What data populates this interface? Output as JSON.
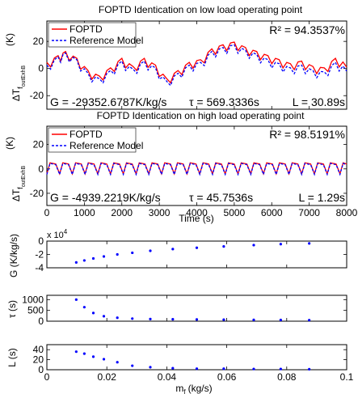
{
  "chart_data": [
    {
      "type": "line",
      "title": "FOPTD Identication on low load operating point",
      "ylabel": "ΔT",
      "ylabel_subscript": "f",
      "ylabel_subsubscript": "out",
      "ylabel_subsubscript2": "ExhB",
      "yunit": "(K)",
      "xlim": [
        0,
        8000
      ],
      "ylim": [
        -30,
        35
      ],
      "yticks": [
        "-20",
        "0",
        "20"
      ],
      "ytick_values": [
        -20,
        0,
        20
      ],
      "legend": {
        "placement": "top-left",
        "entries": [
          "FOPTD",
          "Reference Model"
        ]
      },
      "annotations": {
        "r2": "R² = 94.3537%",
        "gain": "G = -29352.6787K/kg/s",
        "tau": "τ = 569.3336s",
        "delay": "L = 30.89s"
      },
      "series": [
        {
          "name": "FOPTD",
          "color": "#ff0000",
          "style": "solid",
          "x": [
            0,
            300,
            500,
            800,
            1100,
            1400,
            1700,
            2000,
            2300,
            2600,
            2900,
            3200,
            3500,
            3800,
            4100,
            4400,
            4700,
            5000,
            5300,
            5600,
            5900,
            6200,
            6500,
            6800,
            7100,
            7400,
            7700,
            8000
          ],
          "y": [
            2,
            7,
            10,
            5,
            -4,
            -8,
            -2,
            5,
            -1,
            5,
            0,
            -10,
            -4,
            2,
            4,
            12,
            15,
            17,
            13,
            10,
            7,
            4,
            1,
            3,
            -1,
            -2,
            5,
            1
          ]
        },
        {
          "name": "Reference Model",
          "color": "#0000ff",
          "style": "dashed",
          "x": [
            0,
            300,
            500,
            800,
            1100,
            1400,
            1700,
            2000,
            2300,
            2600,
            2900,
            3200,
            3500,
            3800,
            4100,
            4400,
            4700,
            5000,
            5300,
            5600,
            5900,
            6200,
            6500,
            6800,
            7100,
            7400,
            7700,
            8000
          ],
          "y": [
            0,
            6,
            9,
            4,
            -6,
            -10,
            -4,
            3,
            -3,
            3,
            -2,
            -12,
            -6,
            0,
            2,
            10,
            13,
            15,
            11,
            8,
            4,
            1,
            -2,
            0,
            -4,
            -5,
            2,
            -2
          ]
        }
      ]
    },
    {
      "type": "line",
      "title": "FOPTD Identication on high load operating point",
      "ylabel": "ΔT",
      "ylabel_subscript": "f",
      "ylabel_subsubscript": "out",
      "ylabel_subsubscript2": "ExhB",
      "yunit": "(K)",
      "xlabel": "Time (s)",
      "xlim": [
        0,
        8000
      ],
      "ylim": [
        -30,
        35
      ],
      "xticks": [
        "0",
        "1000",
        "2000",
        "3000",
        "4000",
        "5000",
        "6000",
        "7000",
        "8000"
      ],
      "xtick_values": [
        0,
        1000,
        2000,
        3000,
        4000,
        5000,
        6000,
        7000,
        8000
      ],
      "yticks": [
        "-20",
        "0",
        "20"
      ],
      "ytick_values": [
        -20,
        0,
        20
      ],
      "legend": {
        "placement": "top-left",
        "entries": [
          "FOPTD",
          "Reference Model"
        ]
      },
      "annotations": {
        "r2": "R² = 98.5191%",
        "gain": "G = -4939.2219K/kg/s",
        "tau": "τ = 45.7536s",
        "delay": "L = 1.29s"
      },
      "series": [
        {
          "name": "FOPTD",
          "color": "#ff0000",
          "style": "solid",
          "period": 340,
          "high": 5,
          "low": -4
        },
        {
          "name": "Reference Model",
          "color": "#0000ff",
          "style": "dashed",
          "period": 340,
          "high": 4.5,
          "low": -4.5
        }
      ]
    },
    {
      "type": "scatter",
      "ylabel": "G (K/kg/s)",
      "exponent": "x 10",
      "exponent_power": "4",
      "xlim": [
        0,
        0.1
      ],
      "ylim": [
        -4,
        0
      ],
      "yticks": [
        "-4",
        "-2",
        "0"
      ],
      "ytick_values": [
        -4,
        -2,
        0
      ],
      "color": "#0000ff",
      "x": [
        0.0098,
        0.0125,
        0.0155,
        0.019,
        0.0235,
        0.0285,
        0.0345,
        0.042,
        0.05,
        0.059,
        0.069,
        0.078,
        0.0875
      ],
      "y": [
        -3.2,
        -2.9,
        -2.6,
        -2.3,
        -2.0,
        -1.75,
        -1.45,
        -1.2,
        -1.0,
        -0.8,
        -0.6,
        -0.45,
        -0.35
      ]
    },
    {
      "type": "scatter",
      "ylabel": "τ (s)",
      "xlim": [
        0,
        0.1
      ],
      "ylim": [
        0,
        1200
      ],
      "yticks": [
        "0",
        "500",
        "1000"
      ],
      "ytick_values": [
        0,
        500,
        1000
      ],
      "color": "#0000ff",
      "x": [
        0.0098,
        0.0125,
        0.0155,
        0.019,
        0.0235,
        0.0285,
        0.0345,
        0.042,
        0.05,
        0.059,
        0.069,
        0.078,
        0.0875
      ],
      "y": [
        1000,
        650,
        380,
        230,
        160,
        120,
        100,
        90,
        80,
        70,
        60,
        55,
        50
      ]
    },
    {
      "type": "scatter",
      "ylabel": "L (s)",
      "xlabel": "m",
      "xlabel_subscript": "f",
      "xlabel_unit": "(kg/s)",
      "xlim": [
        0,
        0.1
      ],
      "ylim": [
        0,
        50
      ],
      "xticks": [
        "0",
        "0.02",
        "0.04",
        "0.06",
        "0.08",
        "0.1"
      ],
      "xtick_values": [
        0,
        0.02,
        0.04,
        0.06,
        0.08,
        0.1
      ],
      "yticks": [
        "0",
        "20",
        "40"
      ],
      "ytick_values": [
        0,
        20,
        40
      ],
      "color": "#0000ff",
      "x": [
        0.0098,
        0.0125,
        0.0155,
        0.019,
        0.0235,
        0.0285,
        0.0345,
        0.042,
        0.05,
        0.059,
        0.069,
        0.078,
        0.0875
      ],
      "y": [
        36,
        32,
        26,
        21,
        15,
        8,
        5,
        3,
        2,
        2,
        1.5,
        1.5,
        1
      ]
    }
  ]
}
